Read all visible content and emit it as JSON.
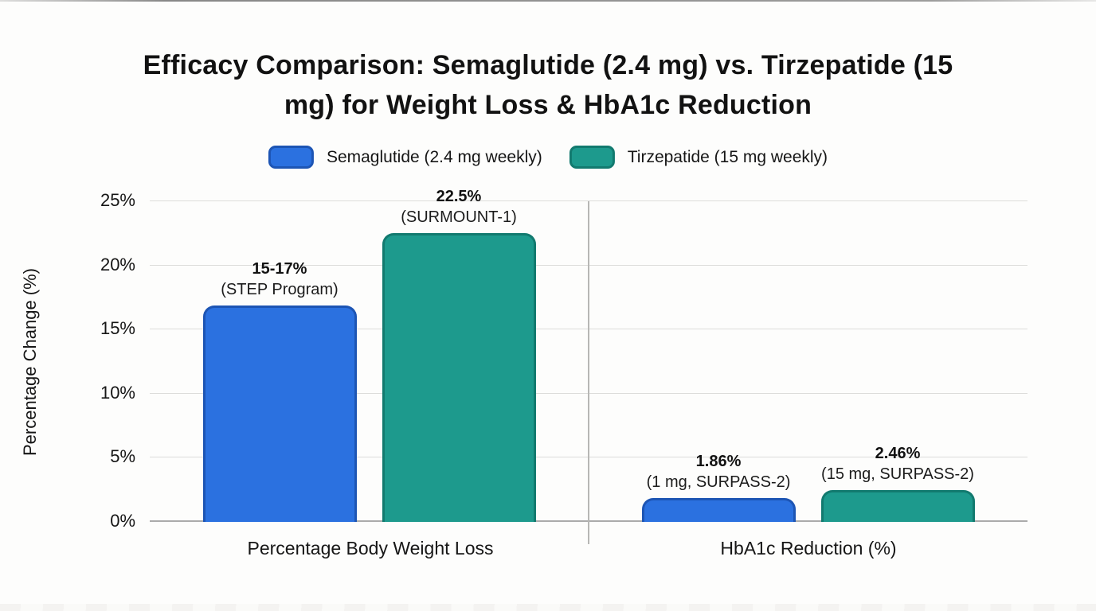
{
  "title": "Efficacy Comparison: Semaglutide (2.4 mg) vs. Tirzepatide (15 mg) for Weight Loss & HbA1c Reduction",
  "legend": [
    {
      "label": "Semaglutide (2.4 mg weekly)",
      "fill": "#2b71e0",
      "border": "#1d55b4"
    },
    {
      "label": "Tirzepatide (15 mg weekly)",
      "fill": "#1d9a8d",
      "border": "#127a6f"
    }
  ],
  "chart_data": {
    "type": "bar",
    "title": "Efficacy Comparison: Semaglutide (2.4 mg) vs. Tirzepatide (15 mg) for Weight Loss & HbA1c Reduction",
    "ylabel": "Percentage Change (%)",
    "xlabel": "",
    "ylim": [
      0,
      25
    ],
    "yticks": [
      {
        "value": 0,
        "label": "0%"
      },
      {
        "value": 5,
        "label": "5%"
      },
      {
        "value": 10,
        "label": "10%"
      },
      {
        "value": 15,
        "label": "15%"
      },
      {
        "value": 20,
        "label": "20%"
      },
      {
        "value": 25,
        "label": "25%"
      }
    ],
    "grid": true,
    "legend_position": "top",
    "categories": {
      "0": "Percentage Body Weight Loss",
      "1": "HbA1c Reduction (%)"
    },
    "series": [
      {
        "name": "Semaglutide (2.4 mg weekly)",
        "values": [
          16.9,
          1.86
        ],
        "value_labels": [
          "15-17%",
          "1.86%"
        ],
        "study_labels": [
          "(STEP Program)",
          "(1 mg, SURPASS-2)"
        ]
      },
      {
        "name": "Tirzepatide (15 mg weekly)",
        "values": [
          22.5,
          2.46
        ],
        "value_labels": [
          "22.5%",
          "2.46%"
        ],
        "study_labels": [
          "(SURMOUNT-1)",
          "(15 mg, SURPASS-2)"
        ]
      }
    ]
  }
}
